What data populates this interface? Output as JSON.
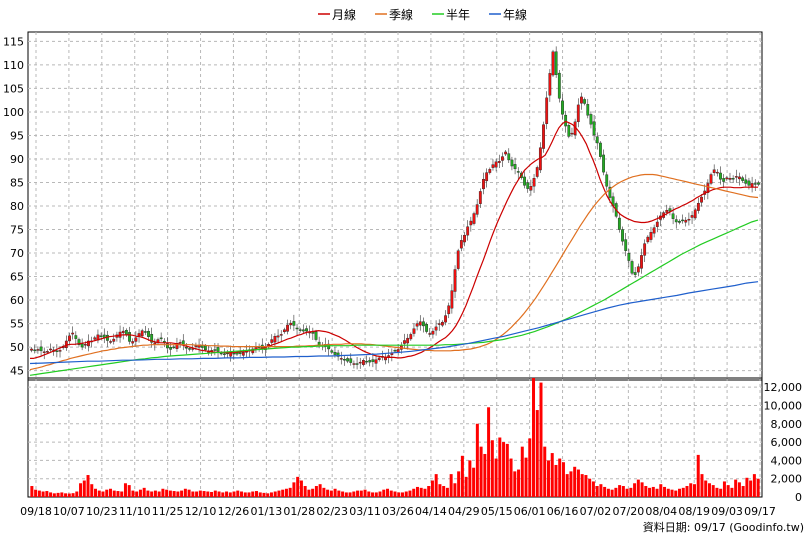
{
  "legend": [
    {
      "label": "月線",
      "color": "#cc0000"
    },
    {
      "label": "季線",
      "color": "#e07020"
    },
    {
      "label": "半年",
      "color": "#22cc22"
    },
    {
      "label": "年線",
      "color": "#1f5fcc"
    }
  ],
  "footer": "資料日期: 09/17  (Goodinfo.tw)",
  "colors": {
    "up": "#ee1111",
    "down": "#22aa22",
    "volume": "#ff0000",
    "grid": "#b8b8b8"
  },
  "chart_data": [
    {
      "type": "candlestick",
      "x_ticks": [
        "09/18",
        "10/07",
        "10/23",
        "11/10",
        "11/25",
        "12/10",
        "12/26",
        "01/13",
        "01/28",
        "02/23",
        "03/11",
        "03/26",
        "04/14",
        "04/29",
        "05/15",
        "06/01",
        "06/16",
        "07/02",
        "07/20",
        "08/04",
        "08/19",
        "09/03",
        "09/17"
      ],
      "ylim": [
        43,
        117
      ],
      "y_ticks": [
        45,
        50,
        55,
        60,
        65,
        70,
        75,
        80,
        85,
        90,
        95,
        100,
        105,
        110,
        115
      ],
      "grid": true,
      "close": [
        49.6,
        49.3,
        49.5,
        49.2,
        49.0,
        49.1,
        49.6,
        49.4,
        49.0,
        49.3,
        50.2,
        51.3,
        52.4,
        53.0,
        51.8,
        50.5,
        50.0,
        50.6,
        51.3,
        51.3,
        52.0,
        52.6,
        52.4,
        52.0,
        51.4,
        51.2,
        51.7,
        52.6,
        53.2,
        53.4,
        52.6,
        51.2,
        51.2,
        52.0,
        52.9,
        53.5,
        53.2,
        52.2,
        51.0,
        50.9,
        51.6,
        51.8,
        50.9,
        49.8,
        49.5,
        50.0,
        50.8,
        51.0,
        50.5,
        49.9,
        49.5,
        49.7,
        50.3,
        50.4,
        49.9,
        49.4,
        49.2,
        49.3,
        49.4,
        49.1,
        48.6,
        48.4,
        48.6,
        48.9,
        48.7,
        48.5,
        48.6,
        48.9,
        49.1,
        49.3,
        49.6,
        49.9,
        49.9,
        49.8,
        50.0,
        50.6,
        51.6,
        52.3,
        52.4,
        52.7,
        53.7,
        54.7,
        55.1,
        54.6,
        53.9,
        53.5,
        53.4,
        53.4,
        53.2,
        52.9,
        51.6,
        50.4,
        50.4,
        50.1,
        49.6,
        48.9,
        48.4,
        48.0,
        47.6,
        47.4,
        47.0,
        46.7,
        46.5,
        46.4,
        46.8,
        47.2,
        47.0,
        46.8,
        46.9,
        47.3,
        47.7,
        47.8,
        47.9,
        48.2,
        48.8,
        49.2,
        49.5,
        50.4,
        51.4,
        51.9,
        52.7,
        53.9,
        55.0,
        55.4,
        54.5,
        53.3,
        52.9,
        53.4,
        54.3,
        55.0,
        55.3,
        56.7,
        58.8,
        62.0,
        66.5,
        70.5,
        72.7,
        73.8,
        75.6,
        76.8,
        78.4,
        80.3,
        83.1,
        85.7,
        87.1,
        87.8,
        88.8,
        89.4,
        89.5,
        90.5,
        91.5,
        89.8,
        88.5,
        87.9,
        87.2,
        86.0,
        84.4,
        83.7,
        84.2,
        85.9,
        88.2,
        92.4,
        97.3,
        103.0,
        108.2,
        112.8,
        107.9,
        102.9,
        99.5,
        97.0,
        94.8,
        95.5,
        97.9,
        101.5,
        103.2,
        101.8,
        99.3,
        97.4,
        95.1,
        93.4,
        90.5,
        87.2,
        84.2,
        81.8,
        80.0,
        77.8,
        75.0,
        72.5,
        70.5,
        68.4,
        65.7,
        65.4,
        67.1,
        69.5,
        72.0,
        73.4,
        74.4,
        75.4,
        76.6,
        77.9,
        78.6,
        79.1,
        78.9,
        77.3,
        76.6,
        76.5,
        76.9,
        77.0,
        77.2,
        78.0,
        79.2,
        80.6,
        81.9,
        83.2,
        84.8,
        86.7,
        87.7,
        87.2,
        85.7,
        85.2,
        86.0,
        85.9,
        85.8,
        86.3,
        86.2,
        85.4,
        84.8,
        84.4,
        84.8,
        84.6,
        84.6
      ],
      "ma": {
        "月線": [
          47.6,
          47.6,
          47.8,
          48.0,
          48.3,
          48.6,
          48.9,
          49.2,
          49.6,
          49.9,
          50.2,
          50.5,
          50.6,
          50.6,
          50.7,
          50.8,
          50.9,
          51.1,
          51.2,
          51.4,
          51.6,
          51.8,
          52.0,
          52.2,
          52.3,
          52.4,
          52.5,
          52.6,
          52.6,
          52.6,
          52.5,
          52.3,
          52.2,
          52.0,
          51.7,
          51.4,
          51.2,
          51.0,
          50.9,
          50.9,
          50.9,
          50.9,
          50.8,
          50.7,
          50.5,
          50.3,
          50.1,
          49.9,
          49.7,
          49.5,
          49.3,
          49.2,
          49.1,
          49.0,
          48.9,
          48.9,
          48.9,
          48.8,
          48.8,
          48.9,
          48.9,
          49.0,
          49.1,
          49.1,
          49.2,
          49.3,
          49.5,
          49.6,
          49.8,
          50.1,
          50.3,
          50.6,
          50.8,
          51.1,
          51.4,
          51.7,
          51.9,
          52.2,
          52.5,
          52.7,
          53.0,
          53.2,
          53.3,
          53.4,
          53.5,
          53.4,
          53.3,
          53.1,
          52.8,
          52.5,
          52.2,
          51.8,
          51.4,
          50.9,
          50.5,
          50.0,
          49.6,
          49.2,
          48.9,
          48.6,
          48.3,
          48.1,
          48.0,
          47.9,
          47.8,
          47.8,
          47.8,
          47.7,
          47.7,
          47.8,
          48.0,
          48.1,
          48.3,
          48.6,
          48.9,
          49.3,
          49.7,
          50.1,
          50.6,
          51.1,
          51.6,
          52.0,
          52.7,
          53.5,
          54.5,
          55.8,
          57.3,
          58.9,
          60.8,
          62.7,
          64.7,
          66.6,
          68.5,
          70.5,
          72.6,
          74.5,
          76.3,
          78.0,
          79.6,
          81.2,
          82.7,
          84.1,
          85.3,
          86.5,
          87.6,
          88.3,
          89.0,
          89.5,
          90.0,
          90.3,
          90.8,
          92.1,
          93.6,
          95.2,
          96.6,
          97.5,
          98.0,
          97.7,
          97.3,
          96.6,
          95.7,
          94.5,
          93.2,
          91.4,
          89.7,
          87.8,
          85.7,
          83.9,
          82.2,
          80.9,
          79.8,
          78.9,
          78.2,
          77.7,
          77.3,
          77.0,
          76.7,
          76.6,
          76.5,
          76.5,
          76.6,
          76.8,
          77.1,
          77.4,
          77.8,
          78.2,
          78.6,
          79.0,
          79.4,
          79.7,
          80.1,
          80.4,
          80.8,
          81.2,
          81.7,
          82.1,
          82.5,
          82.9,
          83.2,
          83.5,
          83.7,
          83.9,
          84.0,
          84.0,
          84.0,
          83.9,
          83.9,
          83.9,
          84.0,
          84.0,
          84.0,
          84.0,
          84.0
        ],
        "季線": [
          45.2,
          45.4,
          45.6,
          45.8,
          46.1,
          46.3,
          46.6,
          46.8,
          47.1,
          47.3,
          47.6,
          47.8,
          48.0,
          48.2,
          48.4,
          48.6,
          48.8,
          49.0,
          49.2,
          49.3,
          49.5,
          49.6,
          49.8,
          49.9,
          50.0,
          50.1,
          50.2,
          50.3,
          50.4,
          50.4,
          50.5,
          50.5,
          50.5,
          50.5,
          50.5,
          50.5,
          50.5,
          50.5,
          50.5,
          50.5,
          50.5,
          50.4,
          50.4,
          50.4,
          50.3,
          50.3,
          50.3,
          50.2,
          50.2,
          50.2,
          50.1,
          50.1,
          50.1,
          50.1,
          50.1,
          50.1,
          50.1,
          50.1,
          50.1,
          50.1,
          50.1,
          50.1,
          50.1,
          50.1,
          50.1,
          50.1,
          50.2,
          50.2,
          50.2,
          50.3,
          50.3,
          50.4,
          50.4,
          50.5,
          50.5,
          50.6,
          50.6,
          50.6,
          50.7,
          50.7,
          50.7,
          50.7,
          50.7,
          50.6,
          50.6,
          50.5,
          50.4,
          50.3,
          50.2,
          50.1,
          50.0,
          49.9,
          49.8,
          49.7,
          49.6,
          49.5,
          49.4,
          49.4,
          49.3,
          49.3,
          49.2,
          49.2,
          49.2,
          49.2,
          49.2,
          49.3,
          49.3,
          49.4,
          49.5,
          49.6,
          49.8,
          50.0,
          50.3,
          50.6,
          51.0,
          51.5,
          52.1,
          52.7,
          53.4,
          54.2,
          55.1,
          56.0,
          57.0,
          58.1,
          59.2,
          60.4,
          61.7,
          63.0,
          64.4,
          65.8,
          67.2,
          68.6,
          70.1,
          71.5,
          72.9,
          74.3,
          75.7,
          77.0,
          78.3,
          79.5,
          80.6,
          81.6,
          82.5,
          83.3,
          84.0,
          84.6,
          85.1,
          85.5,
          85.9,
          86.2,
          86.4,
          86.6,
          86.7,
          86.7,
          86.7,
          86.6,
          86.4,
          86.2,
          86.0,
          85.8,
          85.6,
          85.4,
          85.2,
          85.0,
          84.8,
          84.6,
          84.4,
          84.2,
          84.0,
          83.8,
          83.6,
          83.4,
          83.2,
          83.0,
          82.8,
          82.6,
          82.4,
          82.2,
          82.0,
          81.9,
          81.8
        ],
        "半年": [
          44.0,
          44.2,
          44.4,
          44.6,
          44.8,
          45.0,
          45.2,
          45.4,
          45.6,
          45.8,
          46.0,
          46.2,
          46.4,
          46.6,
          46.8,
          47.0,
          47.2,
          47.4,
          47.5,
          47.7,
          47.8,
          48.0,
          48.1,
          48.2,
          48.3,
          48.4,
          48.5,
          48.6,
          48.7,
          48.8,
          48.9,
          49.0,
          49.1,
          49.2,
          49.3,
          49.4,
          49.5,
          49.6,
          49.7,
          49.8,
          49.9,
          50.0,
          50.0,
          50.1,
          50.1,
          50.2,
          50.2,
          50.3,
          50.3,
          50.3,
          50.3,
          50.4,
          50.4,
          50.4,
          50.4,
          50.4,
          50.4,
          50.4,
          50.4,
          50.4,
          50.4,
          50.4,
          50.4,
          50.4,
          50.4,
          50.5,
          50.5,
          50.6,
          50.7,
          50.8,
          50.9,
          51.0,
          51.2,
          51.4,
          51.6,
          51.9,
          52.2,
          52.5,
          52.9,
          53.3,
          53.8,
          54.3,
          54.8,
          55.4,
          56.0,
          56.6,
          57.3,
          58.0,
          58.7,
          59.4,
          60.1,
          60.9,
          61.7,
          62.5,
          63.3,
          64.1,
          64.9,
          65.7,
          66.5,
          67.3,
          68.1,
          68.9,
          69.7,
          70.4,
          71.1,
          71.8,
          72.4,
          73.0,
          73.6,
          74.2,
          74.8,
          75.4,
          76.0,
          76.6,
          77.0
        ],
        "年線": [
          46.5,
          46.6,
          46.7,
          46.8,
          46.9,
          47.0,
          47.0,
          47.1,
          47.2,
          47.2,
          47.3,
          47.4,
          47.4,
          47.5,
          47.5,
          47.6,
          47.6,
          47.7,
          47.7,
          47.8,
          47.8,
          47.9,
          47.9,
          48.0,
          48.0,
          48.1,
          48.1,
          48.2,
          48.3,
          48.4,
          48.5,
          48.7,
          48.9,
          49.1,
          49.4,
          49.7,
          50.0,
          50.4,
          50.8,
          51.3,
          51.8,
          52.3,
          52.9,
          53.5,
          54.1,
          54.8,
          55.5,
          56.2,
          56.9,
          57.6,
          58.3,
          58.9,
          59.4,
          59.8,
          60.2,
          60.6,
          61.0,
          61.5,
          61.9,
          62.3,
          62.7,
          63.1,
          63.6,
          63.9
        ]
      },
      "ma_start": {
        "月線": 0,
        "季線": 0,
        "半年": 0,
        "年線": 0
      },
      "ma_x_spacing": {
        "月線": "daily",
        "季線": "resampled",
        "半年": "resampled",
        "年線": "resampled"
      }
    },
    {
      "type": "bar",
      "ylabel": "",
      "ylim": [
        0,
        13000
      ],
      "y_ticks": [
        0,
        2000,
        4000,
        6000,
        8000,
        10000,
        12000
      ],
      "y_tick_labels": [
        "0",
        "2,000",
        "4,000",
        "6,000",
        "8,000",
        "10,000",
        "12,000"
      ],
      "values": [
        1200,
        800,
        700,
        600,
        650,
        500,
        400,
        450,
        500,
        400,
        380,
        420,
        600,
        1500,
        1800,
        2400,
        1400,
        900,
        700,
        600,
        800,
        900,
        700,
        650,
        600,
        1500,
        1300,
        700,
        600,
        800,
        1000,
        700,
        600,
        700,
        600,
        900,
        800,
        700,
        650,
        600,
        700,
        900,
        800,
        600,
        600,
        700,
        650,
        600,
        550,
        700,
        600,
        500,
        600,
        500,
        600,
        700,
        600,
        500,
        500,
        600,
        650,
        500,
        450,
        400,
        500,
        600,
        700,
        800,
        900,
        1000,
        1600,
        2200,
        1800,
        1200,
        800,
        900,
        1200,
        1400,
        1000,
        800,
        700,
        900,
        700,
        600,
        500,
        500,
        600,
        700,
        700,
        800,
        600,
        500,
        500,
        600,
        800,
        900,
        700,
        600,
        500,
        500,
        600,
        700,
        900,
        1100,
        1000,
        900,
        1200,
        1800,
        2500,
        1400,
        1200,
        1000,
        2500,
        1500,
        2800,
        4500,
        2200,
        4000,
        3200,
        8000,
        5500,
        4700,
        9800,
        6200,
        4200,
        6500,
        6000,
        5800,
        4200,
        2800,
        3000,
        5500,
        4300,
        6400,
        13000,
        9500,
        12500,
        5500,
        4000,
        4800,
        3500,
        4200,
        3800,
        2500,
        2800,
        3300,
        3000,
        2500,
        2400,
        2000,
        1700,
        1200,
        1400,
        1100,
        900,
        800,
        1000,
        1300,
        1200,
        900,
        1000,
        1500,
        1900,
        1600,
        1200,
        1000,
        1100,
        900,
        1400,
        1100,
        900,
        800,
        700,
        900,
        1000,
        1200,
        1500,
        1400,
        4600,
        2500,
        1800,
        1500,
        1300,
        1000,
        900,
        1700,
        1300,
        1000,
        1900,
        1600,
        1200,
        2100,
        1800,
        2500,
        2000
      ]
    }
  ]
}
